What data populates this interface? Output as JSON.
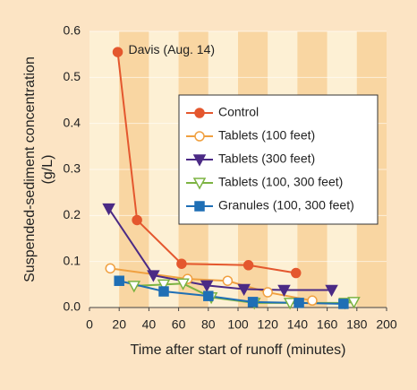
{
  "chart_data": {
    "type": "line",
    "ylabel": [
      "Suspended-sediment concentration",
      "(g/L)"
    ],
    "xlabel": "Time after start of runoff (minutes)",
    "annotation": "Davis (Aug. 14)",
    "xlim": [
      0,
      200
    ],
    "xticks": [
      0,
      20,
      40,
      60,
      80,
      100,
      120,
      140,
      160,
      180,
      200
    ],
    "ylim": [
      0,
      0.6
    ],
    "yticks": [
      {
        "value": 0,
        "label": "0.0"
      },
      0.1,
      0.2,
      0.3,
      0.4,
      0.5,
      0.6
    ],
    "grid": true,
    "series": [
      {
        "name": "Control",
        "color": "#e4572e",
        "marker": "circle",
        "filled": true,
        "x": [
          19,
          32,
          62,
          107,
          139
        ],
        "values": [
          0.555,
          0.19,
          0.095,
          0.092,
          0.075
        ]
      },
      {
        "name": "Tablets (100 feet)",
        "color": "#f0a040",
        "marker": "circle",
        "filled": false,
        "x": [
          14,
          66,
          93,
          120,
          150
        ],
        "values": [
          0.085,
          0.062,
          0.058,
          0.033,
          0.015
        ]
      },
      {
        "name": "Tablets (300 feet)",
        "color": "#4b2a85",
        "marker": "triangle-down",
        "filled": true,
        "x": [
          13,
          43,
          79,
          104,
          131,
          163
        ],
        "values": [
          0.215,
          0.07,
          0.048,
          0.04,
          0.038,
          0.038
        ]
      },
      {
        "name": "Tablets (100, 300 feet)",
        "color": "#7cb342",
        "marker": "triangle-down",
        "filled": false,
        "x": [
          30,
          50,
          63,
          82,
          111,
          135,
          172,
          178
        ],
        "values": [
          0.047,
          0.05,
          0.052,
          0.022,
          0.01,
          0.01,
          0.01,
          0.012
        ]
      },
      {
        "name": "Granules (100, 300 feet)",
        "color": "#1f6fb5",
        "marker": "square",
        "filled": true,
        "x": [
          20,
          50,
          80,
          110,
          141,
          171
        ],
        "values": [
          0.058,
          0.035,
          0.025,
          0.012,
          0.01,
          0.008
        ]
      }
    ]
  }
}
